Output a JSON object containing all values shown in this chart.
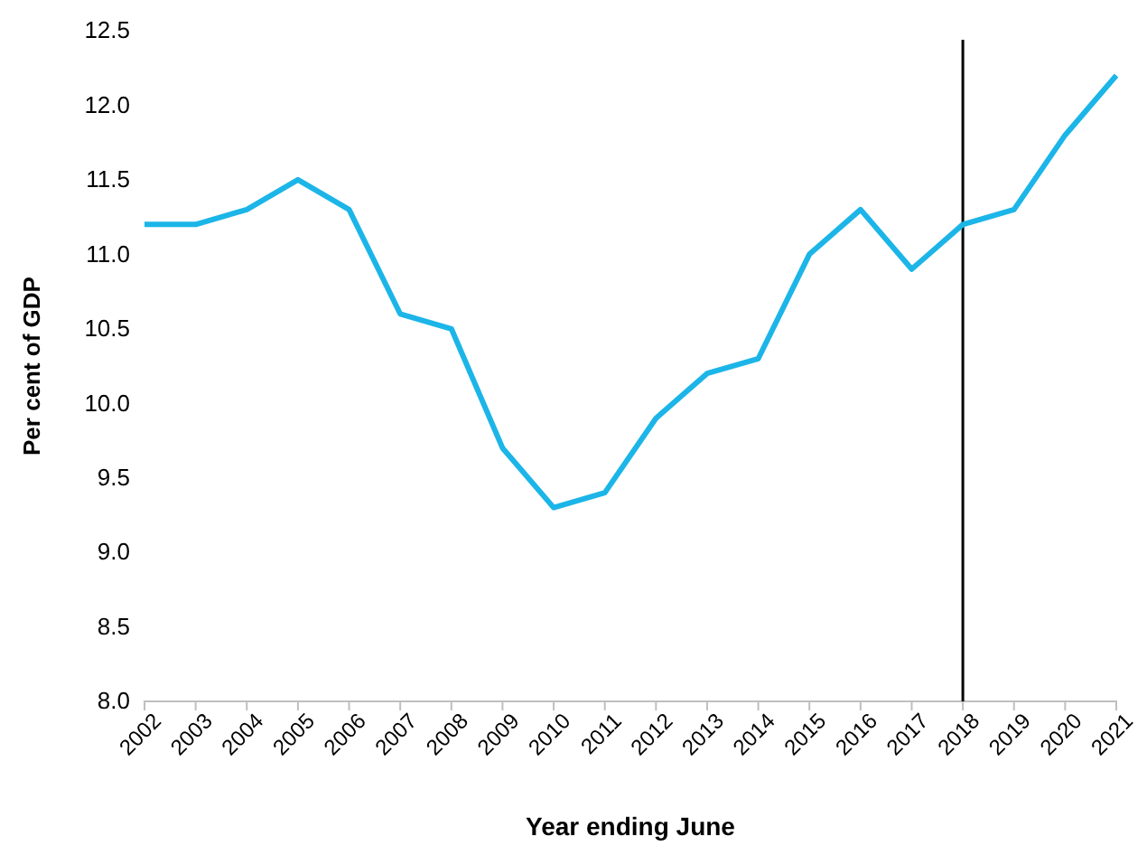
{
  "chart_data": {
    "type": "line",
    "xlabel": "Year ending June",
    "ylabel": "Per cent of GDP",
    "categories": [
      "2002",
      "2003",
      "2004",
      "2005",
      "2006",
      "2007",
      "2008",
      "2009",
      "2010",
      "2011",
      "2012",
      "2013",
      "2014",
      "2015",
      "2016",
      "2017",
      "2018",
      "2019",
      "2020",
      "2021"
    ],
    "series": [
      {
        "color": "#1cb5e8",
        "values": [
          11.2,
          11.2,
          11.3,
          11.5,
          11.3,
          10.6,
          10.5,
          9.7,
          9.3,
          9.4,
          9.9,
          10.2,
          10.3,
          11.0,
          11.3,
          10.9,
          11.2,
          11.3,
          11.8,
          12.2
        ]
      }
    ],
    "ylim": [
      8.0,
      12.5
    ],
    "yticks": [
      {
        "value": 8,
        "label": "8.0"
      },
      {
        "value": 8.5,
        "label": "8.5"
      },
      {
        "value": 9,
        "label": "9.0"
      },
      {
        "value": 9.5,
        "label": "9.5"
      },
      {
        "value": 10,
        "label": "10.0"
      },
      {
        "value": 10.5,
        "label": "10.5"
      },
      {
        "value": 11,
        "label": "11.0"
      },
      {
        "value": 11.5,
        "label": "11.5"
      },
      {
        "value": 12,
        "label": "12.0"
      },
      {
        "value": 12.5,
        "label": "12.5"
      }
    ],
    "ref_lines": [
      {
        "axis": "x",
        "value": "2018",
        "color": "#000000"
      }
    ],
    "grid": false,
    "marker": "none",
    "line_style": "solid"
  }
}
